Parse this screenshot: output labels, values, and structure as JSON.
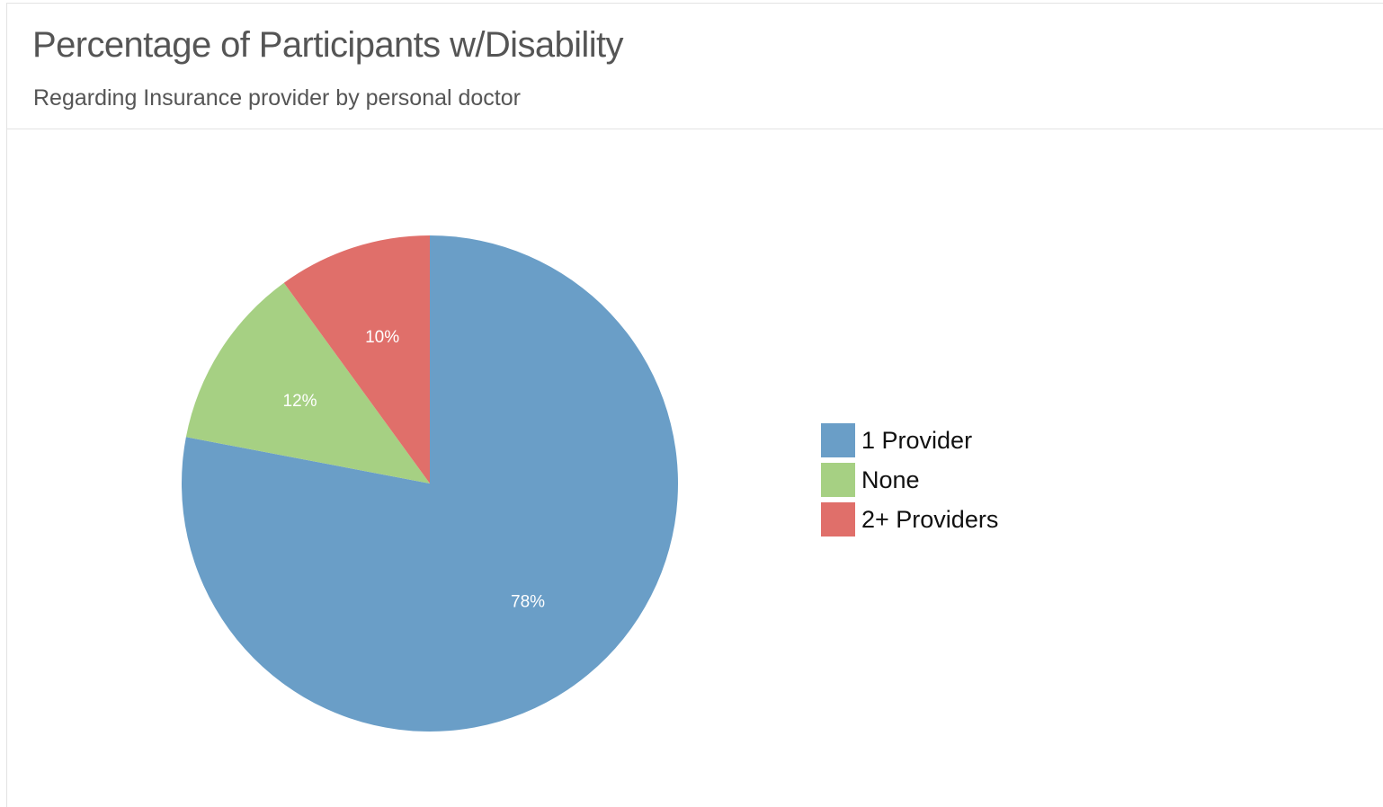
{
  "header": {
    "title": "Percentage of Participants w/Disability",
    "subtitle": "Regarding Insurance provider by personal doctor"
  },
  "chart_data": {
    "type": "pie",
    "title": "Percentage of Participants w/Disability",
    "subtitle": "Regarding Insurance provider by personal doctor",
    "slices": [
      {
        "label": "1 Provider",
        "value": 78,
        "display": "78%",
        "color": "#6a9ec7"
      },
      {
        "label": "None",
        "value": 12,
        "display": "12%",
        "color": "#a6d083"
      },
      {
        "label": "2+ Providers",
        "value": 10,
        "display": "10%",
        "color": "#e06f6a"
      }
    ],
    "start_angle": "12 o'clock",
    "direction": "clockwise",
    "legend_position": "right"
  }
}
